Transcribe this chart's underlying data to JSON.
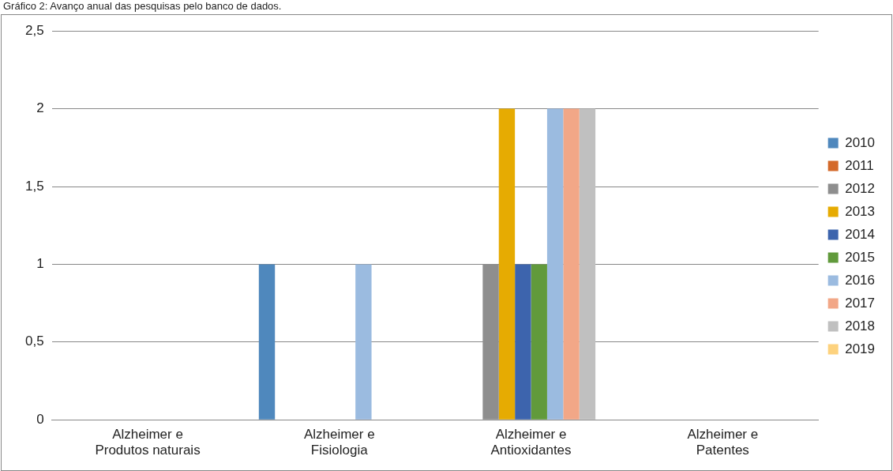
{
  "chart_data": {
    "type": "bar",
    "title": "Gráfico 2: Avanço anual das pesquisas pelo banco de dados.",
    "categories": [
      "Alzheimer e Produtos naturais",
      "Alzheimer e Fisiologia",
      "Alzheimer e Antioxidantes",
      "Alzheimer e Patentes"
    ],
    "series": [
      {
        "name": "2010",
        "color": "#4f88bd",
        "values": [
          0,
          1,
          0,
          0
        ]
      },
      {
        "name": "2011",
        "color": "#d4692a",
        "values": [
          0,
          0,
          0,
          0
        ]
      },
      {
        "name": "2012",
        "color": "#8e8e8e",
        "values": [
          0,
          0,
          1,
          0
        ]
      },
      {
        "name": "2013",
        "color": "#e6ab02",
        "values": [
          0,
          0,
          2,
          0
        ]
      },
      {
        "name": "2014",
        "color": "#3d64ad",
        "values": [
          0,
          0,
          1,
          0
        ]
      },
      {
        "name": "2015",
        "color": "#619a3c",
        "values": [
          0,
          0,
          1,
          0
        ]
      },
      {
        "name": "2016",
        "color": "#9bbbe0",
        "values": [
          0,
          1,
          2,
          0
        ]
      },
      {
        "name": "2017",
        "color": "#f2a787",
        "values": [
          0,
          0,
          2,
          0
        ]
      },
      {
        "name": "2018",
        "color": "#c0c0c0",
        "values": [
          0,
          0,
          2,
          0
        ]
      },
      {
        "name": "2019",
        "color": "#fdd27e",
        "values": [
          0,
          0,
          0,
          0
        ]
      }
    ],
    "ylim": [
      0,
      2.5
    ],
    "yticks": [
      0,
      {
        "value": 0.5,
        "label": "0,5"
      },
      1,
      {
        "value": 1.5,
        "label": "1,5"
      },
      2,
      {
        "value": 2.5,
        "label": "2,5"
      }
    ],
    "grid": "y",
    "legend": "right"
  }
}
